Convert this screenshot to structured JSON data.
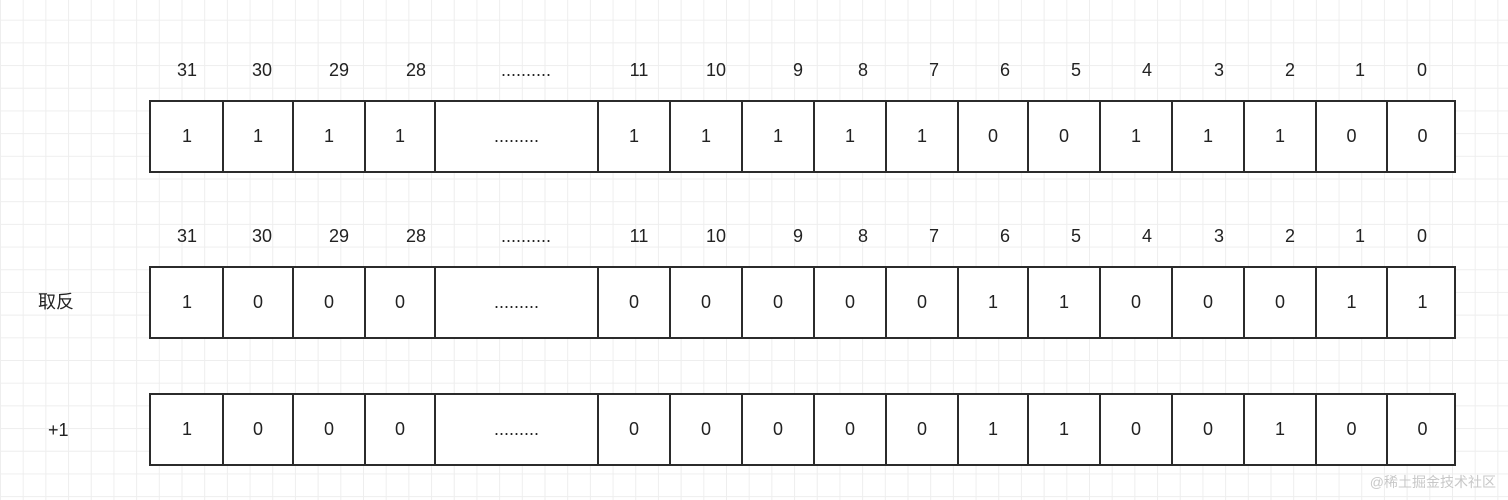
{
  "bit_indices": [
    "31",
    "30",
    "29",
    "28",
    "..........",
    "11",
    "10",
    "9",
    "8",
    "7",
    "6",
    "5",
    "4",
    "3",
    "2",
    "1",
    "0"
  ],
  "rows": [
    {
      "label": "",
      "show_indices": true,
      "values": [
        "1",
        "1",
        "1",
        "1",
        ".........",
        "1",
        "1",
        "1",
        "1",
        "1",
        "0",
        "0",
        "1",
        "1",
        "1",
        "0",
        "0"
      ]
    },
    {
      "label": "取反",
      "show_indices": true,
      "values": [
        "1",
        "0",
        "0",
        "0",
        ".........",
        "0",
        "0",
        "0",
        "0",
        "0",
        "1",
        "1",
        "0",
        "0",
        "0",
        "1",
        "1"
      ]
    },
    {
      "label": "+1",
      "show_indices": false,
      "values": [
        "1",
        "0",
        "0",
        "0",
        ".........",
        "0",
        "0",
        "0",
        "0",
        "0",
        "1",
        "1",
        "0",
        "0",
        "1",
        "0",
        "0"
      ]
    }
  ],
  "watermark": "@稀土掘金技术社区"
}
